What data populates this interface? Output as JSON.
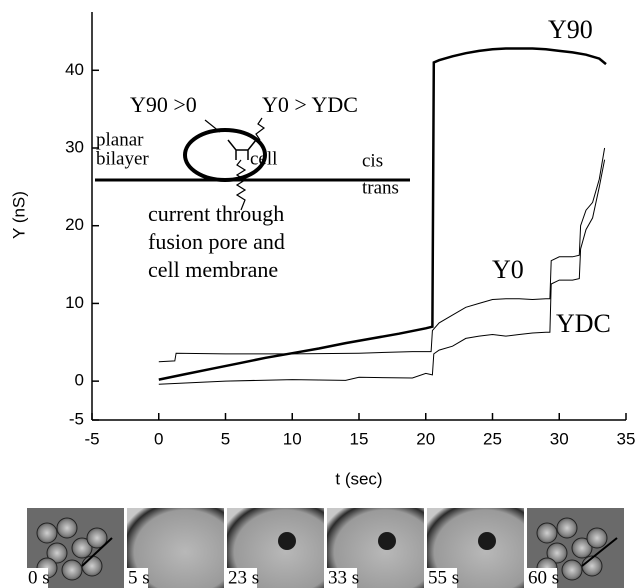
{
  "chart_data": {
    "type": "line",
    "xlabel": "t (sec)",
    "ylabel": "Y (nS)",
    "xlim": [
      -5,
      35
    ],
    "xticks": [
      -5,
      0,
      5,
      10,
      15,
      20,
      25,
      30,
      35
    ],
    "ylim": [
      -5,
      47.5
    ],
    "yticks": [
      -5,
      0,
      10,
      20,
      30,
      40
    ],
    "series": [
      {
        "name": "Y90",
        "color": "#000000",
        "x": [
          0,
          2,
          4,
          6,
          8,
          10,
          12,
          14,
          16,
          18,
          20,
          20.5,
          20.6,
          21,
          22,
          23,
          24,
          25,
          26,
          27,
          28,
          29,
          30,
          31,
          32,
          33,
          33.5
        ],
        "values": [
          0.2,
          0.9,
          1.6,
          2.3,
          3.0,
          3.6,
          4.2,
          4.9,
          5.5,
          6.1,
          6.8,
          7.0,
          41,
          41.3,
          41.8,
          42.2,
          42.5,
          42.7,
          42.8,
          42.8,
          42.8,
          42.7,
          42.5,
          42.3,
          42,
          41.5,
          40.8
        ]
      },
      {
        "name": "Y0",
        "color": "#000000",
        "x": [
          0,
          1.2,
          1.3,
          5,
          10,
          15,
          19,
          20.4,
          20.5,
          21,
          22,
          23,
          24,
          25,
          26,
          27,
          28,
          29,
          29.3,
          29.4,
          30,
          31,
          31.5,
          31.6,
          32,
          32.5,
          33,
          33.4
        ],
        "values": [
          2.5,
          2.6,
          3.6,
          3.5,
          3.5,
          3.6,
          3.8,
          3.8,
          6.5,
          7.5,
          8.5,
          9.5,
          10,
          10.5,
          10.6,
          10.6,
          10.5,
          10.6,
          10.6,
          15.5,
          16,
          16,
          16.2,
          20,
          22,
          23,
          26,
          30
        ]
      },
      {
        "name": "YDC",
        "color": "#000000",
        "x": [
          0,
          5,
          10,
          14,
          15,
          19,
          20,
          20.5,
          20.6,
          21,
          22,
          23,
          24,
          25,
          26,
          27,
          28,
          29,
          29.3,
          29.4,
          30,
          31,
          31.5,
          31.6,
          32,
          32.5,
          33,
          33.4
        ],
        "values": [
          -0.4,
          0,
          0.2,
          0.1,
          0.5,
          0.4,
          1,
          0.8,
          3.5,
          4,
          4.5,
          5.5,
          5.8,
          6,
          5.8,
          6,
          6.2,
          6.3,
          6.3,
          12.5,
          13,
          13,
          13.2,
          17,
          19.5,
          21,
          25,
          28.5
        ]
      }
    ],
    "inset_labels": [
      "Y90 >0",
      "Y0 > YDC",
      "planar",
      "bilayer",
      "cell",
      "cis",
      "trans",
      "current through",
      "fusion pore and",
      "cell membrane"
    ],
    "frames": [
      "0 s",
      "5 s",
      "23 s",
      "33 s",
      "55 s",
      "60 s"
    ]
  }
}
